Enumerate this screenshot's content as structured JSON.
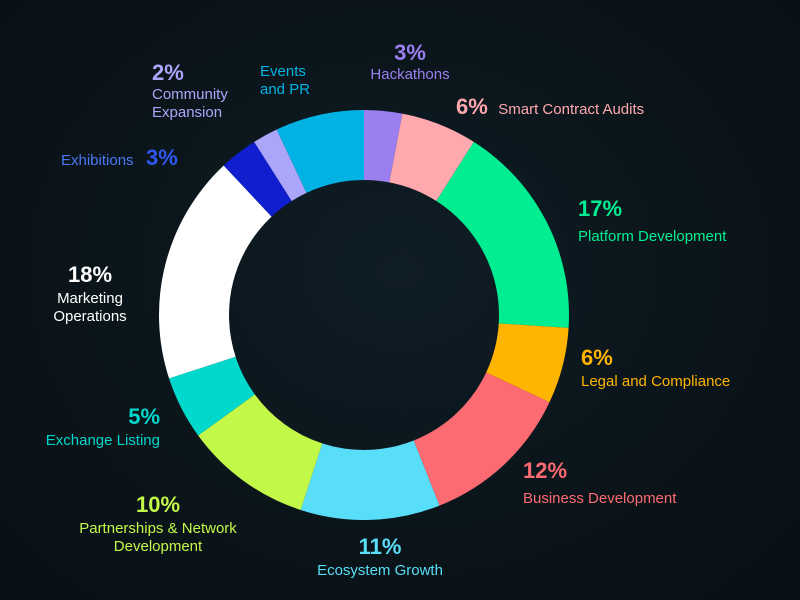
{
  "chart_data": {
    "type": "pie",
    "variant": "donut",
    "slices": [
      {
        "label": "Hackathons",
        "value": 3,
        "pct_label": "3%",
        "color": "#9b7ff0"
      },
      {
        "label": "Smart Contract Audits",
        "value": 6,
        "pct_label": "6%",
        "color": "#ffa8ad"
      },
      {
        "label": "Platform Development",
        "value": 17,
        "pct_label": "17%",
        "color": "#00ee91"
      },
      {
        "label": "Legal and Compliance",
        "value": 6,
        "pct_label": "6%",
        "color": "#ffb400"
      },
      {
        "label": "Business Development",
        "value": 12,
        "pct_label": "12%",
        "color": "#fd6b72"
      },
      {
        "label": "Ecosystem Growth",
        "value": 11,
        "pct_label": "11%",
        "color": "#58def8"
      },
      {
        "label": "Partnerships & Network Development",
        "value": 10,
        "pct_label": "10%",
        "color": "#c2f848",
        "label_lines": [
          "Partnerships & Network",
          "Development"
        ]
      },
      {
        "label": "Exchange Listing",
        "value": 5,
        "pct_label": "5%",
        "color": "#00d8cb"
      },
      {
        "label": "Marketing Operations",
        "value": 18,
        "pct_label": "18%",
        "color": "#ffffff",
        "label_lines": [
          "Marketing",
          "Operations"
        ]
      },
      {
        "label": "Exhibitions",
        "value": 3,
        "pct_label": "3%",
        "color": "#0f1fd0"
      },
      {
        "label": "Community Expansion",
        "value": 2,
        "pct_label": "2%",
        "color": "#aca6fb",
        "label_lines": [
          "Community",
          "Expansion"
        ]
      },
      {
        "label": "Events and PR",
        "value": 7,
        "pct_label": "",
        "color": "#00b3e4",
        "label_lines": [
          "Events",
          "and PR"
        ]
      }
    ],
    "title": "",
    "legend": "none"
  }
}
